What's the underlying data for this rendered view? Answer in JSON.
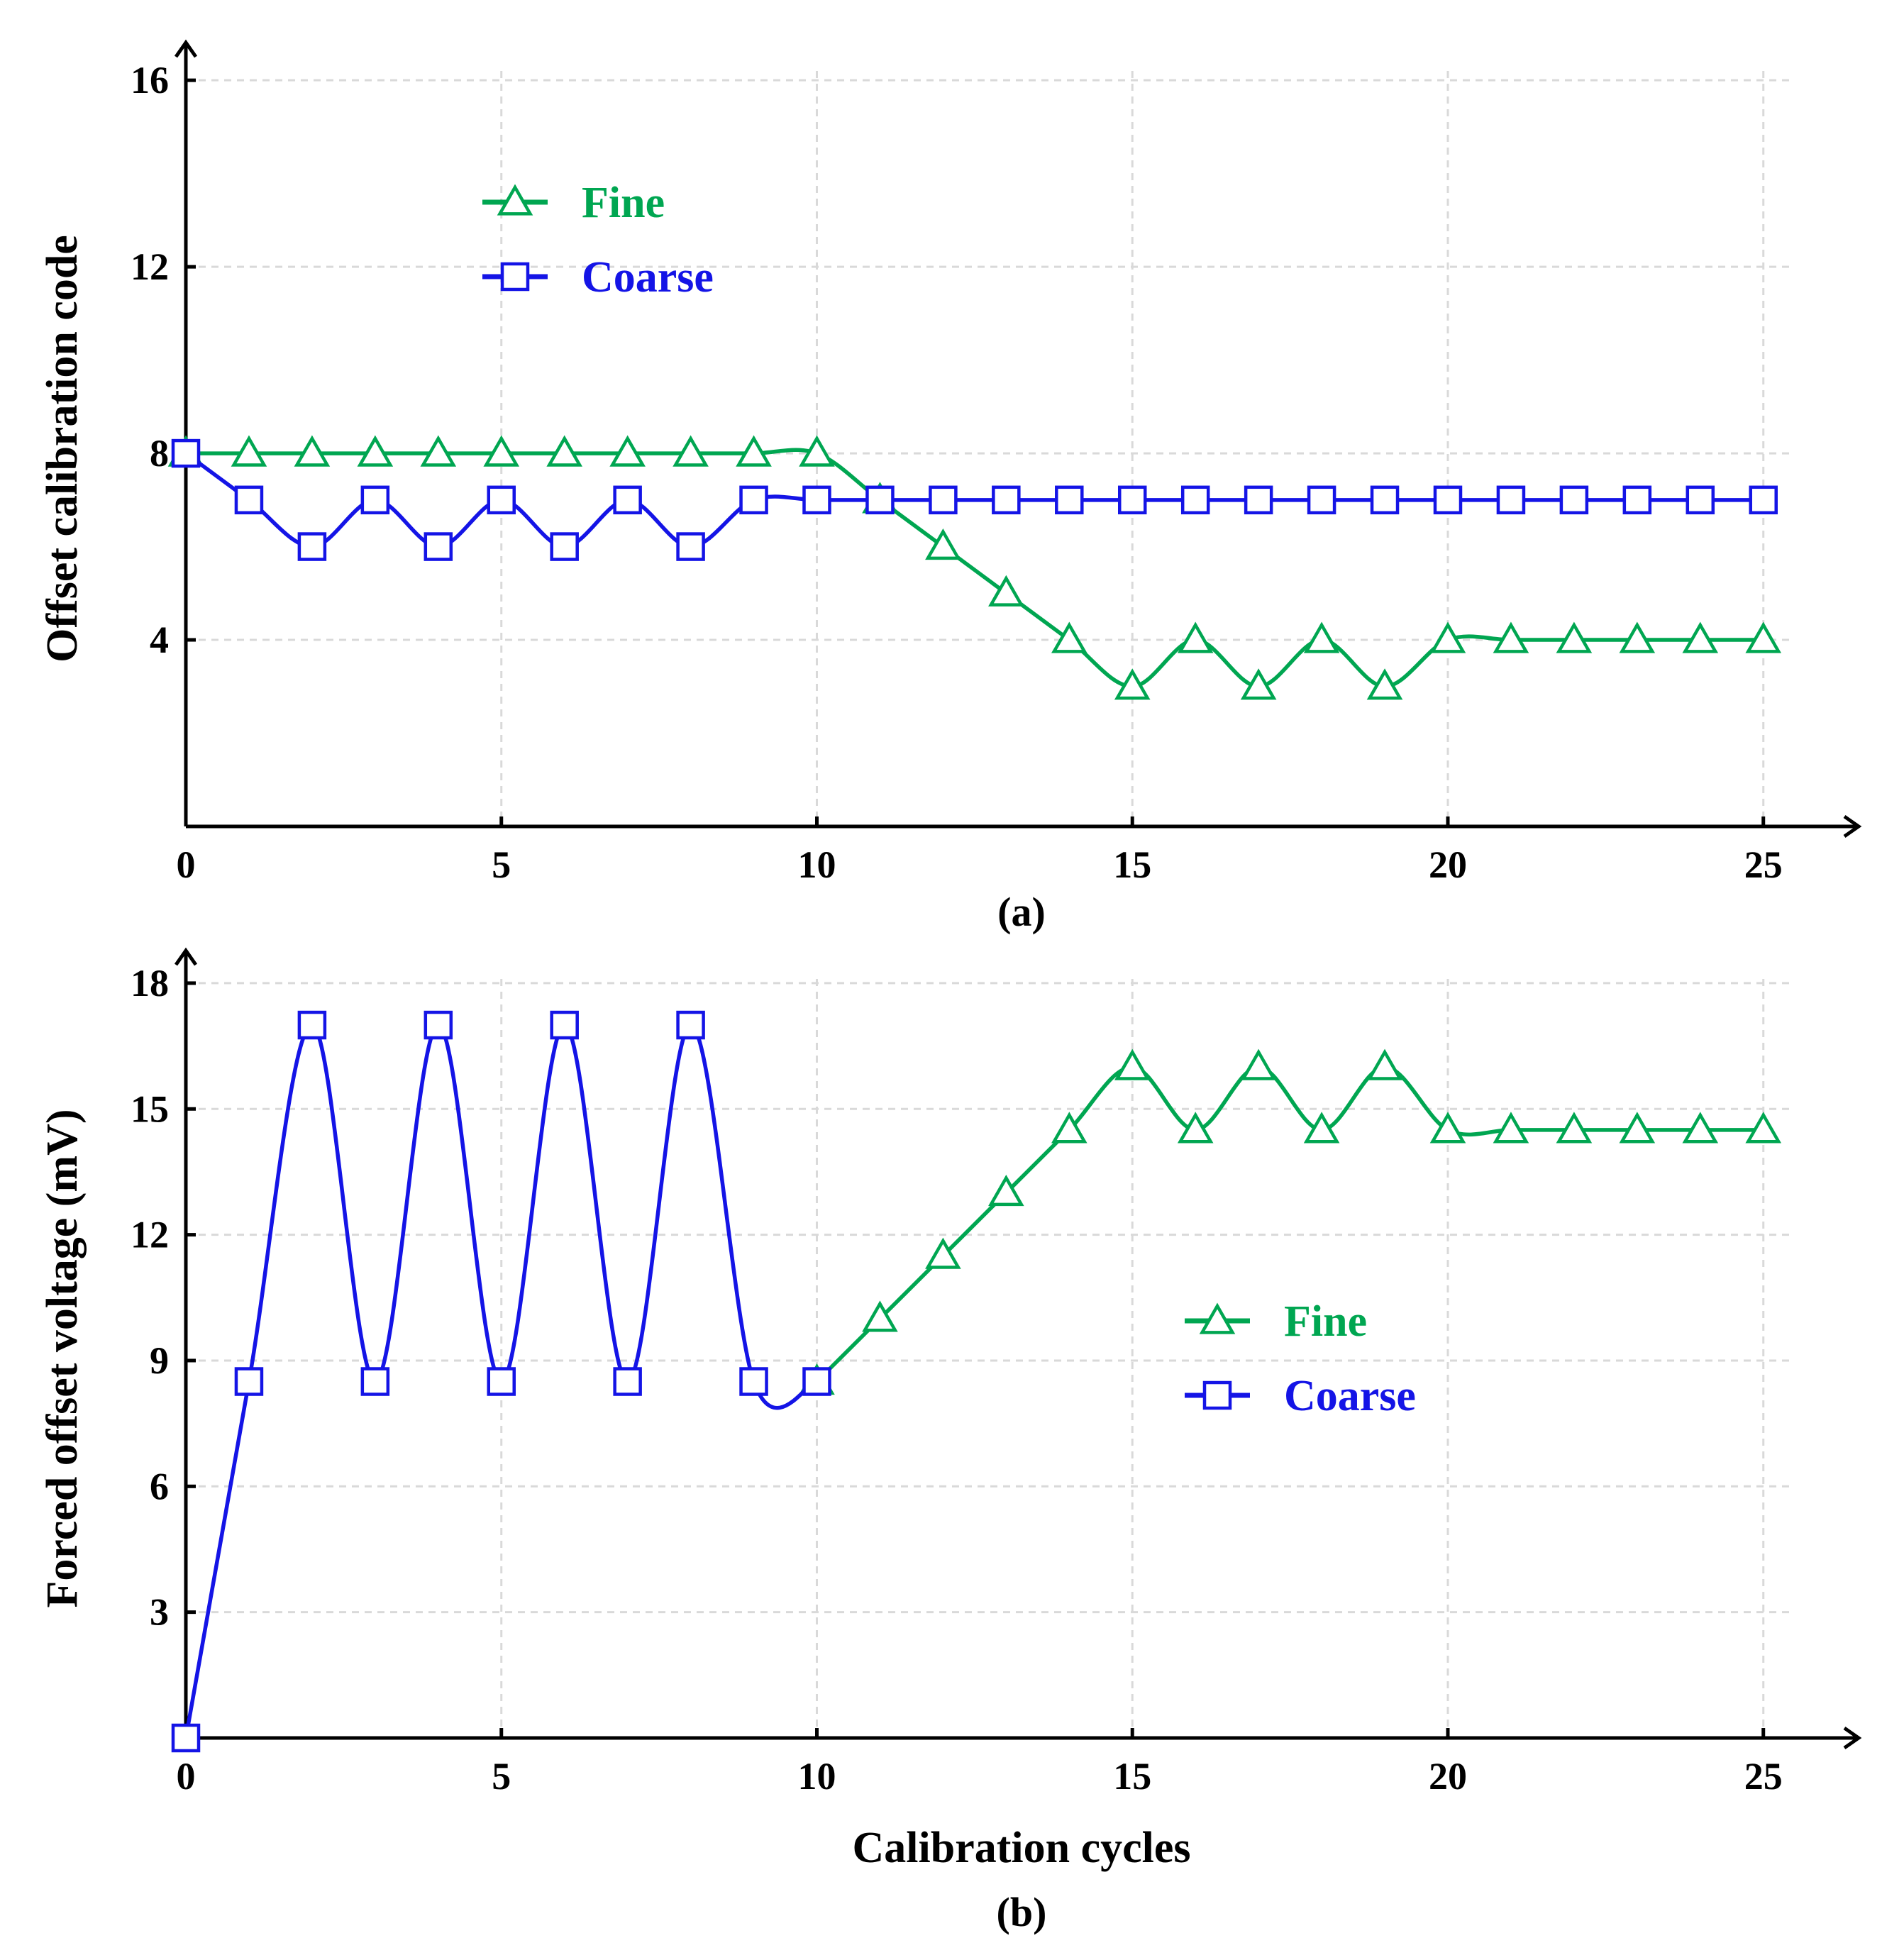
{
  "chart_data": [
    {
      "type": "line",
      "id": "a",
      "caption": "(a)",
      "xlabel": "",
      "ylabel": "Offset calibration code",
      "xlim": [
        0,
        25.7
      ],
      "ylim": [
        0,
        16.2
      ],
      "xticks": [
        0,
        5,
        10,
        15,
        20,
        25
      ],
      "yticks": [
        4,
        8,
        12,
        16
      ],
      "grid": true,
      "legend_position": "upper-left",
      "series": [
        {
          "name": "Fine",
          "color": "#00a651",
          "marker": "triangle",
          "x": [
            0,
            1,
            2,
            3,
            4,
            5,
            6,
            7,
            8,
            9,
            10,
            11,
            12,
            13,
            14,
            15,
            16,
            17,
            18,
            19,
            20,
            21,
            22,
            23,
            24,
            25
          ],
          "y": [
            8,
            8,
            8,
            8,
            8,
            8,
            8,
            8,
            8,
            8,
            8,
            7,
            6,
            5,
            4,
            3,
            4,
            3,
            4,
            3,
            4,
            4,
            4,
            4,
            4,
            4
          ]
        },
        {
          "name": "Coarse",
          "color": "#1414e6",
          "marker": "square",
          "x": [
            0,
            1,
            2,
            3,
            4,
            5,
            6,
            7,
            8,
            9,
            10,
            11,
            12,
            13,
            14,
            15,
            16,
            17,
            18,
            19,
            20,
            21,
            22,
            23,
            24,
            25
          ],
          "y": [
            8,
            7,
            6,
            7,
            6,
            7,
            6,
            7,
            6,
            7,
            7,
            7,
            7,
            7,
            7,
            7,
            7,
            7,
            7,
            7,
            7,
            7,
            7,
            7,
            7,
            7
          ]
        }
      ]
    },
    {
      "type": "line",
      "id": "b",
      "caption": "(b)",
      "xlabel": "Calibration cycles",
      "ylabel": "Forced offset voltage (mV)",
      "xlim": [
        0,
        25.7
      ],
      "ylim": [
        0,
        18.1
      ],
      "xticks": [
        0,
        5,
        10,
        15,
        20,
        25
      ],
      "yticks": [
        3,
        6,
        9,
        12,
        15,
        18
      ],
      "grid": true,
      "legend_position": "center-right",
      "series": [
        {
          "name": "Fine",
          "color": "#00a651",
          "marker": "triangle",
          "x": [
            10,
            11,
            12,
            13,
            14,
            15,
            16,
            17,
            18,
            19,
            20,
            21,
            22,
            23,
            24,
            25
          ],
          "y": [
            8.5,
            10,
            11.5,
            13,
            14.5,
            16,
            14.5,
            16,
            14.5,
            16,
            14.5,
            14.5,
            14.5,
            14.5,
            14.5,
            14.5
          ]
        },
        {
          "name": "Coarse",
          "color": "#1414e6",
          "marker": "square",
          "x": [
            0,
            1,
            2,
            3,
            4,
            5,
            6,
            7,
            8,
            9,
            10
          ],
          "y": [
            0,
            8.5,
            17,
            8.5,
            17,
            8.5,
            17,
            8.5,
            17,
            8.5,
            8.5
          ]
        }
      ]
    }
  ]
}
